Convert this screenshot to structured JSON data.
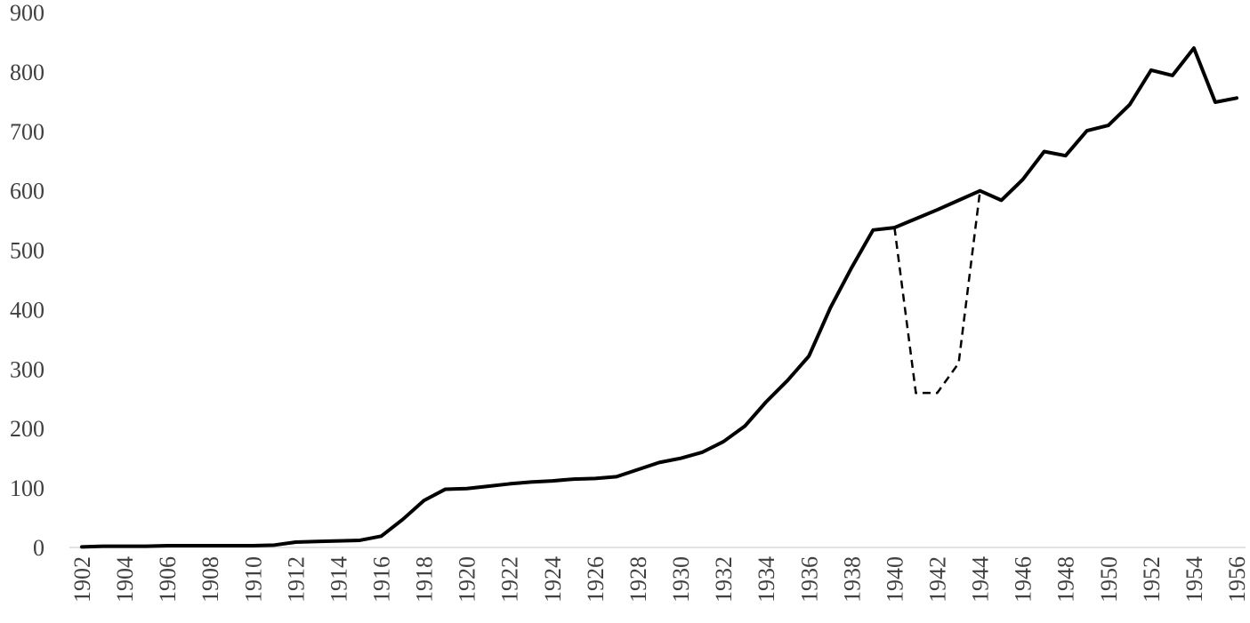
{
  "chart_data": {
    "type": "line",
    "title": "",
    "xlabel": "",
    "ylabel": "",
    "ylim": [
      0,
      900
    ],
    "xlim": [
      1902,
      1956
    ],
    "y_ticks": [
      0,
      100,
      200,
      300,
      400,
      500,
      600,
      700,
      800,
      900
    ],
    "x_tick_labels": [
      "1902",
      "1904",
      "1906",
      "1908",
      "1910",
      "1912",
      "1914",
      "1916",
      "1918",
      "1920",
      "1922",
      "1924",
      "1926",
      "1928",
      "1930",
      "1932",
      "1934",
      "1936",
      "1938",
      "1940",
      "1942",
      "1944",
      "1946",
      "1948",
      "1950",
      "1952",
      "1954",
      "1956"
    ],
    "grid": false,
    "legend": "none",
    "series": [
      {
        "style": "solid",
        "color": "#000000",
        "x": [
          1902,
          1903,
          1904,
          1905,
          1906,
          1907,
          1908,
          1909,
          1910,
          1911,
          1912,
          1913,
          1914,
          1915,
          1916,
          1917,
          1918,
          1919,
          1920,
          1921,
          1922,
          1923,
          1924,
          1925,
          1926,
          1927,
          1928,
          1929,
          1930,
          1931,
          1932,
          1933,
          1934,
          1935,
          1936,
          1937,
          1938,
          1939,
          1940,
          1941,
          1942,
          1943,
          1944,
          1945,
          1946,
          1947,
          1948,
          1949,
          1950,
          1951,
          1952,
          1953,
          1954,
          1955,
          1956
        ],
        "y": [
          1,
          2,
          2,
          2,
          3,
          3,
          3,
          3,
          3,
          4,
          9,
          10,
          11,
          12,
          19,
          47,
          79,
          98,
          99,
          103,
          107,
          110,
          112,
          115,
          116,
          119,
          131,
          143,
          150,
          160,
          178,
          204,
          245,
          281,
          322,
          403,
          471,
          534,
          538,
          553,
          568,
          584,
          600,
          584,
          619,
          666,
          659,
          701,
          710,
          745,
          803,
          794,
          840,
          749,
          756
        ]
      },
      {
        "style": "dashed",
        "color": "#000000",
        "x": [
          1940,
          1941,
          1942,
          1943,
          1944
        ],
        "y": [
          538,
          260,
          260,
          310,
          600
        ]
      }
    ]
  }
}
